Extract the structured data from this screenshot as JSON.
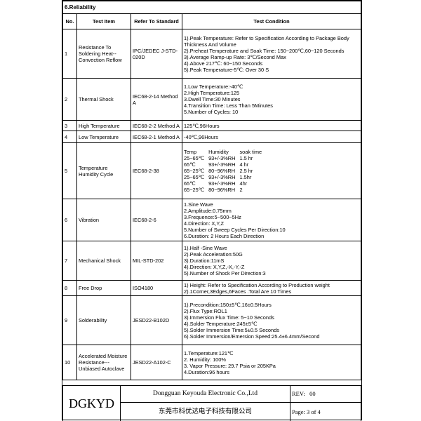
{
  "header": {
    "title": "6.Reliability",
    "columns": [
      "No.",
      "Test Item",
      "Refer To Standard",
      "Test Condition"
    ]
  },
  "table": {
    "rows": [
      {
        "no": "1",
        "item": "Resistance To Soldering Heat--Convection Reflow",
        "standard": "IPC/JEDEC J-STD-020D",
        "condition": [
          "1).Peak Temperature: Refer to Specification According to Package Body Thickness And Volume",
          "2).Preheat Temperature and Soak Time: 150~200℃,60~120 Seconds",
          "3).Average Ramp-up Rate: 3℃/Second Max",
          "4).Above 217℃: 60~150 Seconds",
          "5).Peak Temperature-5℃: Over 30 S"
        ]
      },
      {
        "no": "2",
        "item": "Thermal Shock",
        "standard": "IEC68-2-14 Method A",
        "condition": [
          "1.Low Temperature:-40℃",
          "2.High Temperature:125",
          "3.Dwell Time:30 Minutes",
          "4.Transition Time: Less Than 5Minutes",
          "5.Number of Cycles: 10"
        ]
      },
      {
        "no": "3",
        "item": "High Temperature",
        "standard": "IEC68-2-2 Method A",
        "condition": [
          "125℃,96Hours"
        ]
      },
      {
        "no": "4",
        "item": "Low Temperature",
        "standard": "IEC68-2-1 Method A",
        "condition": [
          "-40℃,96Hours"
        ]
      },
      {
        "no": "5",
        "item": "Temperature Humidity Cycle",
        "standard": "IEC68-2-38",
        "condition_table": {
          "header": [
            "Temp",
            "Humidity",
            "soak time"
          ],
          "rows": [
            [
              "25~65℃",
              "93+/-3%RH",
              "1.5 hr"
            ],
            [
              "65℃",
              "93+/-3%RH",
              "4 hr"
            ],
            [
              "65~25℃",
              "80~96%RH",
              "2.5 hr"
            ],
            [
              "25~65℃",
              "93+/-3%RH",
              "1.5hr"
            ],
            [
              "65℃",
              "93+/-3%RH",
              "4hr"
            ],
            [
              "65~25℃",
              "80~96%RH",
              "2"
            ]
          ]
        }
      },
      {
        "no": "6",
        "item": "Vibration",
        "standard": "IEC68-2-6",
        "condition": [
          "1.Sine Wave",
          "2.Amplitude:0.75mm",
          "3.Frequence:5~500~5Hz",
          "4.Direction: X,Y,Z",
          "5.Number of Sweep Cycles Per Direction:10",
          "6.Duration: 2 Hours Each Direction"
        ]
      },
      {
        "no": "7",
        "item": "Mechanical Shock",
        "standard": "MIL-STD-202",
        "condition": [
          "1).Half -Sine Wave",
          "2).Peak Acceleration:50G",
          "3).Duration:11mS",
          "4).Direction: X,Y,Z,-X,-Y,-Z",
          "5).Number of Shock Per Direction:3"
        ]
      },
      {
        "no": "8",
        "item": "Free Drop",
        "standard": "ISO4180",
        "condition": [
          "1) Height: Refer to Specification According to Production weight",
          "2).1Corner,3Edges,6Faces .Total Are 10 Times"
        ]
      },
      {
        "no": "9",
        "item": "Solderability",
        "standard": "JESD22-B102D",
        "condition": [
          "1).Precondition:150±5℃,16±0.5Hours",
          "2).Flux Type:ROL1",
          "3).Immersion Flux Time: 5~10 Seconds",
          "4).Solder Temperature:245±5℃",
          "5).Solder Immersion Time:5±0.5 Seconds",
          "6).Solder Immersion/Emersion Speed:25.4±6.4mm/Second"
        ]
      },
      {
        "no": "10",
        "item": "Accelerated Moisture Resistance---Unbiased Autoclave",
        "standard": "JESD22-A102-C",
        "condition": [
          "1.Temperature:121℃",
          "2. Humidity: 100%",
          "3. Vapor Pressure: 29.7 Psia or 205KPa",
          "4.Duration:96 hours"
        ]
      }
    ]
  },
  "footer": {
    "logo": "DGKYD",
    "company": "Dongguan Keyouda Electronic Co.,Ltd",
    "company_cn": "东莞市科优达电子科技有限公司",
    "rev_label": "REV:",
    "rev": "00",
    "page": "Page:  3 of 4"
  }
}
